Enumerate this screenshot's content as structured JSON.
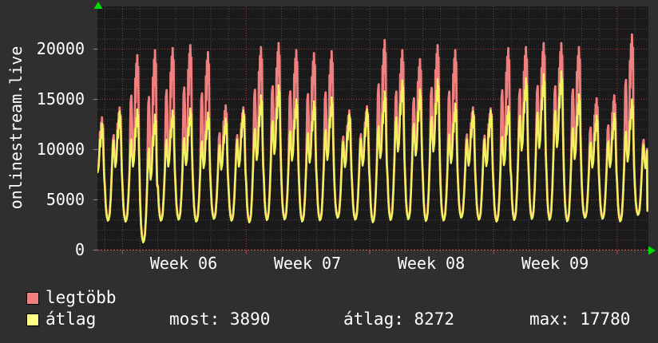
{
  "chart_data": {
    "type": "line",
    "title": "onlinestream.live",
    "ylabel": "onlinestream.live",
    "xlabel": "",
    "x_tick_labels": [
      "Week 06",
      "Week 07",
      "Week 08",
      "Week 09"
    ],
    "y_ticks": [
      0,
      5000,
      10000,
      15000,
      20000
    ],
    "ylim": [
      0,
      24250
    ],
    "x_range_days": [
      -1.42,
      29.77
    ],
    "week_gridlines_days": [
      0,
      7,
      14,
      21,
      28
    ],
    "grid": "dotted; minor gray every 1000 (y) and every day (x); major red every 5000 (y) and every week (x)",
    "legend_position": "bottom-left",
    "axis_arrow_color": "#00dd00",
    "plot_bg": "#1a1a1a",
    "outer_bg": "#2f2f2f",
    "minor_grid_color": "#4a4a4a",
    "major_grid_color": "#a23c3c",
    "zero_line_color": "#cc5555",
    "series": [
      {
        "name": "legtöbb",
        "meaning": "daily maximum viewers",
        "line_color": "#f08080",
        "swatch_color": "#f08080"
      },
      {
        "name": "átlag",
        "meaning": "average viewers",
        "line_color": "#f2f25f",
        "swatch_color": "#ffff88"
      }
    ],
    "stats": {
      "most": 3890,
      "átlag": 8272,
      "max": 17780
    },
    "stats_text": {
      "most": "most: 3890",
      "atlag": "átlag: 8272",
      "max": "max: 17780"
    },
    "days_format": "[avg_peak, max_peak, night_low] — one entry per day starting Saturday before Week 06; peaks read off the graph",
    "days": [
      [
        12600,
        13200,
        2900
      ],
      [
        13800,
        14200,
        2700
      ],
      [
        14000,
        19400,
        2600
      ],
      [
        13500,
        19900,
        500
      ],
      [
        13900,
        20100,
        2700
      ],
      [
        14100,
        20400,
        2800
      ],
      [
        13700,
        19700,
        2600
      ],
      [
        13100,
        14400,
        2900
      ],
      [
        13900,
        14200,
        2700
      ],
      [
        15400,
        20200,
        2500
      ],
      [
        16400,
        20600,
        2700
      ],
      [
        15000,
        19900,
        2800
      ],
      [
        14800,
        19600,
        2600
      ],
      [
        15200,
        19800,
        2700
      ],
      [
        13500,
        13900,
        3000
      ],
      [
        14000,
        14300,
        2800
      ],
      [
        15800,
        20900,
        2500
      ],
      [
        16900,
        19900,
        2700
      ],
      [
        16000,
        19000,
        2800
      ],
      [
        17000,
        20400,
        2600
      ],
      [
        14600,
        19900,
        2700
      ],
      [
        13800,
        14200,
        3000
      ],
      [
        13900,
        14100,
        2800
      ],
      [
        14300,
        20100,
        2600
      ],
      [
        17100,
        20200,
        2700
      ],
      [
        17500,
        20600,
        2800
      ],
      [
        17780,
        20600,
        2700
      ],
      [
        15500,
        20200,
        2600
      ],
      [
        13400,
        15100,
        3000
      ],
      [
        13600,
        15400,
        2900
      ],
      [
        15000,
        21450,
        2600
      ],
      [
        13000,
        13400,
        3300
      ]
    ],
    "daily_profile_avg": [
      [
        0,
        0.32
      ],
      [
        1.2,
        0.15
      ],
      [
        2.5,
        0.06
      ],
      [
        4,
        0.02
      ],
      [
        5.2,
        0.03
      ],
      [
        6.5,
        0.07
      ],
      [
        8,
        0.22
      ],
      [
        9.5,
        0.45
      ],
      [
        11,
        0.7
      ],
      [
        12,
        0.74
      ],
      [
        13,
        0.6
      ],
      [
        14.2,
        0.5
      ],
      [
        15.5,
        0.55
      ],
      [
        16.5,
        0.68
      ],
      [
        17.3,
        0.83
      ],
      [
        18,
        0.76
      ],
      [
        18.8,
        0.92
      ],
      [
        19.4,
        0.85
      ],
      [
        20.1,
        1.0
      ],
      [
        20.8,
        0.9
      ],
      [
        21.4,
        0.95
      ],
      [
        22.2,
        0.68
      ],
      [
        23.1,
        0.45
      ]
    ],
    "daily_profile_max_extra": {
      "11": 0.72,
      "12": 0.76,
      "13": 0.62,
      "17.3": 0.86,
      "18": 0.72,
      "18.8": 0.95,
      "19.4": 0.82,
      "20.1": 1.0,
      "20.8": 0.88,
      "21.4": 0.93
    },
    "first_day_start_hour": 13.8,
    "last_day_end_hour": 16.6,
    "last_value": 3890
  }
}
